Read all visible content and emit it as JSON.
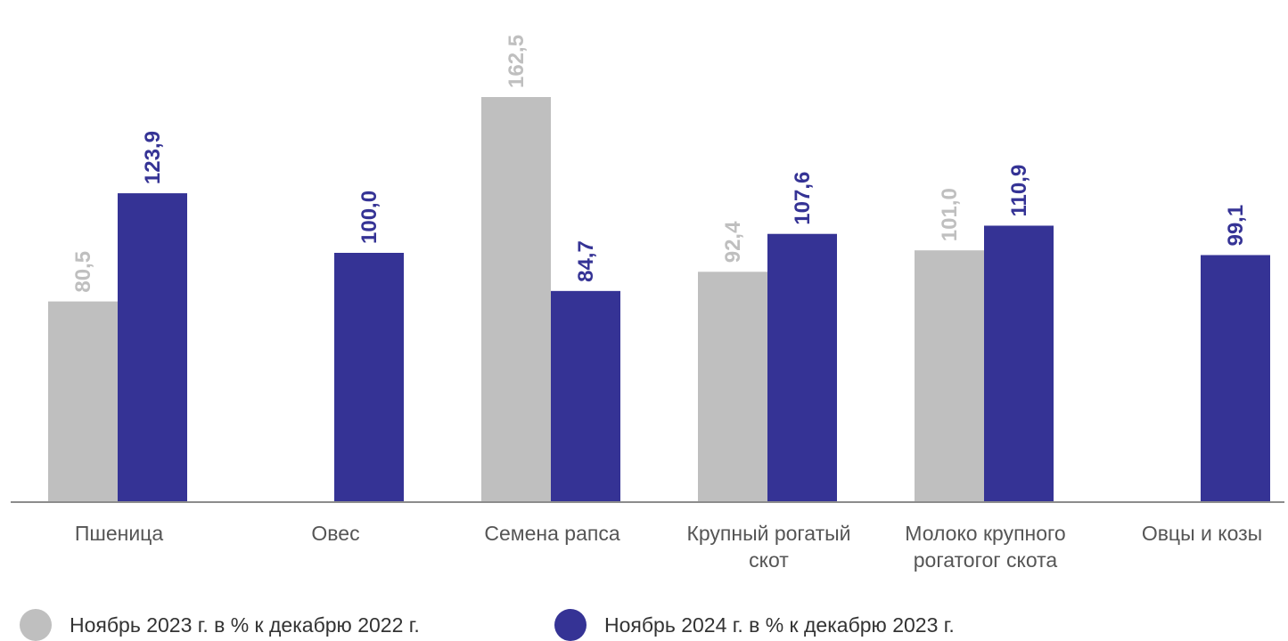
{
  "chart_data": {
    "type": "bar",
    "categories": [
      [
        "Пшеница"
      ],
      [
        "Овес"
      ],
      [
        "Семена рапса"
      ],
      [
        "Крупный рогатый",
        "скот"
      ],
      [
        "Молоко крупного",
        "рогатогог скота"
      ],
      [
        "Овцы и козы"
      ]
    ],
    "series": [
      {
        "name": "Ноябрь 2023  г. в % к декабрю 2022 г.",
        "values": [
          80.5,
          null,
          162.5,
          92.4,
          101.0,
          null
        ],
        "labels": [
          "80,5",
          "",
          "162,5",
          "92,4",
          "101,0",
          ""
        ],
        "color": "#bfbfbf"
      },
      {
        "name": "Ноябрь 2024 г. в % к декабрю 2023 г.",
        "values": [
          123.9,
          100.0,
          84.7,
          107.6,
          110.9,
          99.1
        ],
        "labels": [
          "123,9",
          "100,0",
          "84,7",
          "107,6",
          "110,9",
          "99,1"
        ],
        "color": "#353395"
      }
    ],
    "ylim": [
      0,
      200
    ],
    "grid": false,
    "legend_position": "bottom"
  }
}
